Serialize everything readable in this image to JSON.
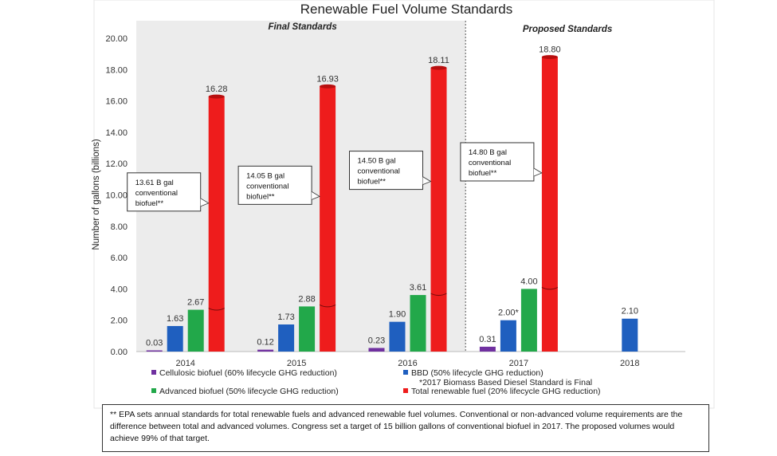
{
  "chart_data": {
    "type": "bar",
    "title": "Renewable Fuel Volume Standards",
    "ylabel": "Number of gallons (billions)",
    "xlabel": "",
    "ylim": [
      0,
      20
    ],
    "yticks": [
      "0.00",
      "2.00",
      "4.00",
      "6.00",
      "8.00",
      "10.00",
      "12.00",
      "14.00",
      "16.00",
      "18.00",
      "20.00"
    ],
    "categories": [
      "2014",
      "2015",
      "2016",
      "2017",
      "2018"
    ],
    "series": [
      {
        "name": "Cellulosic biofuel (60% lifecycle GHG reduction)",
        "color": "#7030a0",
        "values": [
          0.03,
          0.12,
          0.23,
          0.31,
          null
        ],
        "labels": [
          "0.03",
          "0.12",
          "0.23",
          "0.31",
          ""
        ]
      },
      {
        "name": "BBD (50% lifecycle GHG reduction)",
        "color": "#1f5fbf",
        "values": [
          1.63,
          1.73,
          1.9,
          2.0,
          2.1
        ],
        "labels": [
          "1.63",
          "1.73",
          "1.90",
          "2.00*",
          "2.10"
        ]
      },
      {
        "name": "Advanced biofuel (50% lifecycle GHG reduction)",
        "color": "#22a84a",
        "values": [
          2.67,
          2.88,
          3.61,
          4.0,
          null
        ],
        "labels": [
          "2.67",
          "2.88",
          "3.61",
          "4.00",
          ""
        ]
      },
      {
        "name": "Total renewable fuel (20% lifecycle GHG reduction)",
        "color": "#ee1c1c",
        "values": [
          16.28,
          16.93,
          18.11,
          18.8,
          null
        ],
        "labels": [
          "16.28",
          "16.93",
          "18.11",
          "18.80",
          ""
        ]
      }
    ],
    "sections": [
      {
        "label": "Final Standards",
        "shaded": true
      },
      {
        "label": "Proposed Standards",
        "shaded": false
      }
    ],
    "callouts": [
      {
        "category": "2014",
        "lines": [
          "13.61 B gal",
          "conventional",
          "biofuel**"
        ]
      },
      {
        "category": "2015",
        "lines": [
          "14.05 B gal",
          "conventional",
          "biofuel**"
        ]
      },
      {
        "category": "2016",
        "lines": [
          "14.50 B gal",
          "conventional",
          "biofuel**"
        ]
      },
      {
        "category": "2017",
        "lines": [
          "14.80 B gal",
          "conventional",
          "biofuel**"
        ]
      }
    ],
    "legend_note": "*2017 Biomass Based Diesel Standard is Final",
    "grid": false,
    "legend_position": "bottom"
  },
  "footnote": "** EPA sets annual standards for total renewable fuels and advanced renewable fuel volumes.  Conventional or non-advanced volume requirements are the difference between total and advanced volumes.  Congress set a target of 15 billion gallons of conventional biofuel in 2017.  The proposed volumes would achieve 99% of that target."
}
